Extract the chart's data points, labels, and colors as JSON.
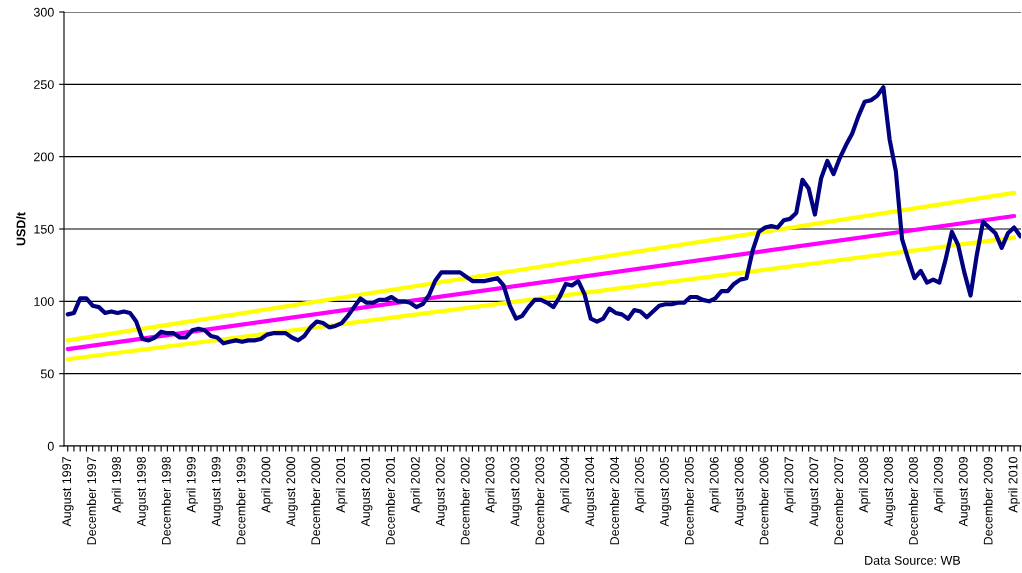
{
  "chart_data": {
    "type": "line",
    "ylabel": "USD/t",
    "categories": [
      "August 1997",
      null,
      null,
      null,
      "December 1997",
      null,
      null,
      null,
      "April 1998",
      null,
      null,
      null,
      "August 1998",
      null,
      null,
      null,
      "December 1998",
      null,
      null,
      null,
      "April 1999",
      null,
      null,
      null,
      "August 1999",
      null,
      null,
      null,
      "December 1999",
      null,
      null,
      null,
      "April 2000",
      null,
      null,
      null,
      "August 2000",
      null,
      null,
      null,
      "December 2000",
      null,
      null,
      null,
      "April 2001",
      null,
      null,
      null,
      "August 2001",
      null,
      null,
      null,
      "December 2001",
      null,
      null,
      null,
      "April 2002",
      null,
      null,
      null,
      "August 2002",
      null,
      null,
      null,
      "December 2002",
      null,
      null,
      null,
      "April 2003",
      null,
      null,
      null,
      "August 2003",
      null,
      null,
      null,
      "December 2003",
      null,
      null,
      null,
      "April 2004",
      null,
      null,
      null,
      "August 2004",
      null,
      null,
      null,
      "December 2004",
      null,
      null,
      null,
      "April 2005",
      null,
      null,
      null,
      "August 2005",
      null,
      null,
      null,
      "December 2005",
      null,
      null,
      null,
      "April 2006",
      null,
      null,
      null,
      "August 2006",
      null,
      null,
      null,
      "December 2006",
      null,
      null,
      null,
      "April 2007",
      null,
      null,
      null,
      "August 2007",
      null,
      null,
      null,
      "December 2007",
      null,
      null,
      null,
      "April 2008",
      null,
      null,
      null,
      "August 2008",
      null,
      null,
      null,
      "December 2008",
      null,
      null,
      null,
      "April 2009",
      null,
      null,
      null,
      "August 2009",
      null,
      null,
      null,
      "December 2009",
      null,
      null,
      null,
      "April 2010",
      null
    ],
    "series": [
      {
        "color": "#000080",
        "values": [
          91,
          92,
          102,
          102,
          97,
          96,
          92,
          93,
          92,
          93,
          92,
          86,
          74,
          73,
          75,
          79,
          78,
          78,
          75,
          75,
          80,
          81,
          80,
          76,
          75,
          71,
          72,
          73,
          72,
          73,
          73,
          74,
          77,
          78,
          78,
          78,
          75,
          73,
          76,
          82,
          86,
          85,
          82,
          83,
          85,
          90,
          96,
          102,
          99,
          99,
          101,
          101,
          103,
          100,
          100,
          99,
          96,
          98,
          104,
          114,
          120,
          120,
          120,
          120,
          117,
          114,
          114,
          114,
          115,
          116,
          111,
          97,
          88,
          90,
          96,
          101,
          101,
          99,
          96,
          103,
          112,
          111,
          114,
          105,
          88,
          86,
          88,
          95,
          92,
          91,
          88,
          94,
          93,
          89,
          93,
          97,
          98,
          98,
          99,
          99,
          103,
          103,
          101,
          100,
          102,
          107,
          107,
          112,
          115,
          116,
          135,
          148,
          151,
          152,
          151,
          156,
          157,
          161,
          184,
          178,
          160,
          185,
          197,
          188,
          199,
          208,
          216,
          228,
          238,
          239,
          242,
          248,
          212,
          190,
          143,
          129,
          116,
          121,
          113,
          115,
          113,
          129,
          148,
          139,
          120,
          104,
          132,
          155,
          151,
          147,
          137,
          147,
          151,
          145
        ]
      },
      {
        "type": "line",
        "color": "#ffff00",
        "x": [
          "August 1997",
          "April 2010"
        ],
        "values": [
          73,
          175
        ]
      },
      {
        "type": "line",
        "color": "#ff00ff",
        "x": [
          "August 1997",
          "April 2010"
        ],
        "values": [
          67,
          159
        ]
      },
      {
        "type": "line",
        "color": "#ffff00",
        "x": [
          "August 1997",
          "April 2010"
        ],
        "values": [
          60,
          144
        ]
      }
    ],
    "ylim": [
      0,
      300
    ],
    "yticks": [
      0,
      50,
      100,
      150,
      200,
      250,
      300
    ],
    "grid": "y",
    "annotations": [
      "Data Source: WB"
    ]
  }
}
